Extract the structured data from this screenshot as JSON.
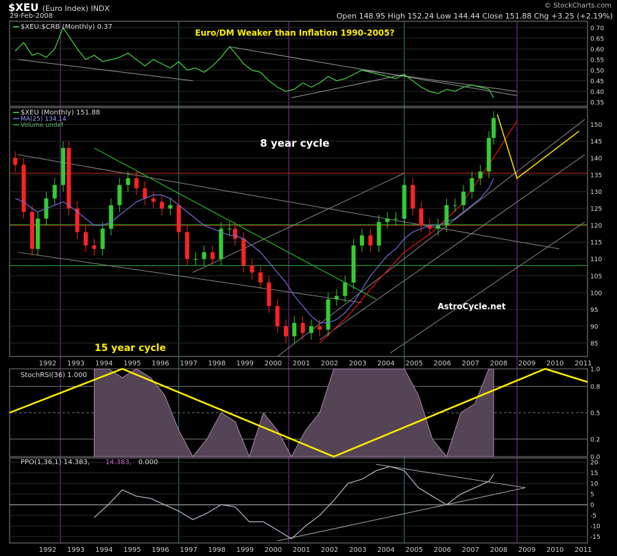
{
  "header": {
    "symbol": "$XEU",
    "symbol_desc": "(Euro Index) INDX",
    "date": "29-Feb-2008",
    "ohlc": "Open 148.95  High 152.24  Low 144.44  Close 151.88  Chg +3.25 (+2.19%)",
    "logo": "© StockCharts.com"
  },
  "colors": {
    "background": "#000000",
    "grid": "#666666",
    "up": "#33cc33",
    "down": "#ff2222",
    "ratio_line": "#44dd44",
    "ma": "#7070dd",
    "stochrsi_fill": "#aa88aa",
    "ppo_line": "#bbbbcc",
    "cycle_line": "#ffee00",
    "trend_red": "#cc1111",
    "trend_green": "#22bb22",
    "vline_teal": "#2a8a8a",
    "vline_purple": "#8833aa"
  },
  "chart_data": [
    {
      "type": "line",
      "panel": "ratio",
      "legend": "$XEU:$CRB (Monthly) 0.37",
      "title": "Euro/DM Weaker than Inflation 1990-2005?",
      "ylim": [
        0.33,
        0.73
      ],
      "yticks": [
        "0.70",
        "0.65",
        "0.60",
        "0.55",
        "0.50",
        "0.45",
        "0.40",
        "0.35"
      ],
      "x": [
        1991.2,
        1991.5,
        1991.8,
        1992.0,
        1992.3,
        1992.6,
        1992.9,
        1993.1,
        1993.4,
        1993.7,
        1994.0,
        1994.3,
        1994.6,
        1994.9,
        1995.2,
        1995.5,
        1995.8,
        1996.1,
        1996.4,
        1996.7,
        1997.0,
        1997.3,
        1997.6,
        1997.9,
        1998.2,
        1998.5,
        1998.8,
        1999.0,
        1999.3,
        1999.6,
        1999.9,
        2000.2,
        2000.5,
        2000.8,
        2001.1,
        2001.4,
        2001.7,
        2002.0,
        2002.3,
        2002.6,
        2002.9,
        2003.2,
        2003.5,
        2003.8,
        2004.1,
        2004.4,
        2004.7,
        2005.0,
        2005.3,
        2005.6,
        2005.9,
        2006.2,
        2006.5,
        2006.8,
        2007.1,
        2007.4,
        2007.7,
        2008.0,
        2008.17
      ],
      "y": [
        0.59,
        0.63,
        0.57,
        0.58,
        0.56,
        0.6,
        0.7,
        0.66,
        0.6,
        0.55,
        0.57,
        0.54,
        0.55,
        0.56,
        0.58,
        0.55,
        0.52,
        0.55,
        0.53,
        0.51,
        0.54,
        0.5,
        0.51,
        0.49,
        0.52,
        0.56,
        0.61,
        0.58,
        0.53,
        0.5,
        0.49,
        0.45,
        0.42,
        0.4,
        0.41,
        0.44,
        0.42,
        0.44,
        0.47,
        0.45,
        0.46,
        0.48,
        0.5,
        0.49,
        0.48,
        0.47,
        0.46,
        0.48,
        0.45,
        0.42,
        0.4,
        0.39,
        0.41,
        0.4,
        0.42,
        0.43,
        0.42,
        0.41,
        0.37
      ]
    },
    {
      "type": "candlestick",
      "panel": "price",
      "legend": [
        "$XEU (Monthly) 151.88",
        "MA(25) 134.14",
        "Volume undef"
      ],
      "annotations": [
        "8 year cycle",
        "15 year cycle",
        "AstroCycle.net"
      ],
      "ylim": [
        81,
        155
      ],
      "yticks": [
        "150",
        "145",
        "140",
        "135",
        "130",
        "125",
        "120",
        "115",
        "110",
        "105",
        "100",
        "95",
        "90",
        "85"
      ],
      "xticks": [
        "1992",
        "1993",
        "1994",
        "1995",
        "1996",
        "1997",
        "1998",
        "1999",
        "2000",
        "2001",
        "2002",
        "2003",
        "2004",
        "2005",
        "2006",
        "2007",
        "2008",
        "2009",
        "2010",
        "2011"
      ],
      "x": [
        1991.2,
        1991.5,
        1991.8,
        1992.0,
        1992.3,
        1992.6,
        1992.9,
        1993.1,
        1993.4,
        1993.7,
        1994.0,
        1994.3,
        1994.6,
        1994.9,
        1995.2,
        1995.5,
        1995.8,
        1996.1,
        1996.4,
        1996.7,
        1997.0,
        1997.3,
        1997.6,
        1997.9,
        1998.2,
        1998.5,
        1998.8,
        1999.0,
        1999.3,
        1999.6,
        1999.9,
        2000.2,
        2000.5,
        2000.8,
        2001.1,
        2001.4,
        2001.7,
        2002.0,
        2002.3,
        2002.6,
        2002.9,
        2003.2,
        2003.5,
        2003.8,
        2004.1,
        2004.4,
        2004.7,
        2005.0,
        2005.3,
        2005.6,
        2005.9,
        2006.2,
        2006.5,
        2006.8,
        2007.1,
        2007.4,
        2007.7,
        2008.0,
        2008.17
      ],
      "close": [
        138,
        124,
        113,
        122,
        128,
        132,
        143,
        125,
        118,
        114,
        113,
        119,
        126,
        132,
        134,
        131,
        128,
        127,
        125,
        126,
        118,
        110,
        110,
        112,
        110,
        119,
        119,
        116,
        108,
        106,
        103,
        96,
        90,
        87,
        91,
        88,
        90,
        89,
        98,
        99,
        103,
        114,
        117,
        114,
        121,
        122,
        122,
        132,
        125,
        120,
        119,
        120,
        126,
        126,
        130,
        134,
        136,
        146,
        151.9
      ],
      "ma": [
        128,
        127,
        125,
        124,
        125,
        126,
        127,
        126,
        124,
        122,
        120,
        120,
        121,
        123,
        125,
        127,
        128,
        129,
        129,
        128,
        126,
        124,
        122,
        120,
        119,
        118,
        117,
        117,
        116,
        114,
        112,
        109,
        106,
        103,
        99,
        96,
        93,
        91,
        91,
        92,
        94,
        97,
        101,
        105,
        108,
        111,
        113,
        116,
        118,
        119,
        120,
        120,
        121,
        122,
        124,
        126,
        128,
        131,
        134
      ]
    },
    {
      "type": "area",
      "panel": "stochrsi",
      "legend": "StochRSI(36) 1.000",
      "ylim": [
        0,
        1
      ],
      "yticks": [
        "1.0",
        "0.8",
        "0.5",
        "0.2",
        "0.0"
      ],
      "x": [
        1994.0,
        1994.5,
        1995.0,
        1995.5,
        1996.0,
        1996.5,
        1997.0,
        1997.5,
        1998.0,
        1998.5,
        1999.0,
        1999.5,
        2000.0,
        2000.5,
        2001.0,
        2001.5,
        2002.0,
        2002.5,
        2003.0,
        2003.5,
        2004.0,
        2004.5,
        2005.0,
        2005.5,
        2006.0,
        2006.5,
        2007.0,
        2007.5,
        2008.0,
        2008.17
      ],
      "y": [
        1.0,
        1.0,
        0.9,
        1.0,
        0.9,
        0.7,
        0.3,
        0.0,
        0.2,
        0.5,
        0.4,
        0.0,
        0.5,
        0.3,
        0.0,
        0.3,
        0.5,
        1.0,
        1.0,
        1.0,
        1.0,
        1.0,
        1.0,
        0.7,
        0.2,
        0.0,
        0.5,
        0.6,
        1.0,
        1.0
      ]
    },
    {
      "type": "line",
      "panel": "ppo",
      "legend": [
        "PPO(1,36,1) 14.383,",
        "14.383,",
        "0.000"
      ],
      "ylim": [
        -18,
        22
      ],
      "yticks": [
        "20",
        "15",
        "10",
        "5",
        "0",
        "-5",
        "-10",
        "-15"
      ],
      "x": [
        1994.0,
        1994.5,
        1995.0,
        1995.5,
        1996.0,
        1996.5,
        1997.0,
        1997.5,
        1998.0,
        1998.5,
        1999.0,
        1999.5,
        2000.0,
        2000.5,
        2001.0,
        2001.5,
        2002.0,
        2002.5,
        2003.0,
        2003.5,
        2004.0,
        2004.5,
        2005.0,
        2005.5,
        2006.0,
        2006.5,
        2007.0,
        2007.5,
        2008.0,
        2008.17
      ],
      "y": [
        -6,
        0,
        7,
        4,
        3,
        0,
        -3,
        -7,
        -4,
        0,
        -1,
        -8,
        -8,
        -12,
        -16,
        -10,
        -5,
        2,
        10,
        12,
        16,
        18,
        16,
        8,
        4,
        0,
        5,
        8,
        11,
        14.4
      ]
    }
  ]
}
